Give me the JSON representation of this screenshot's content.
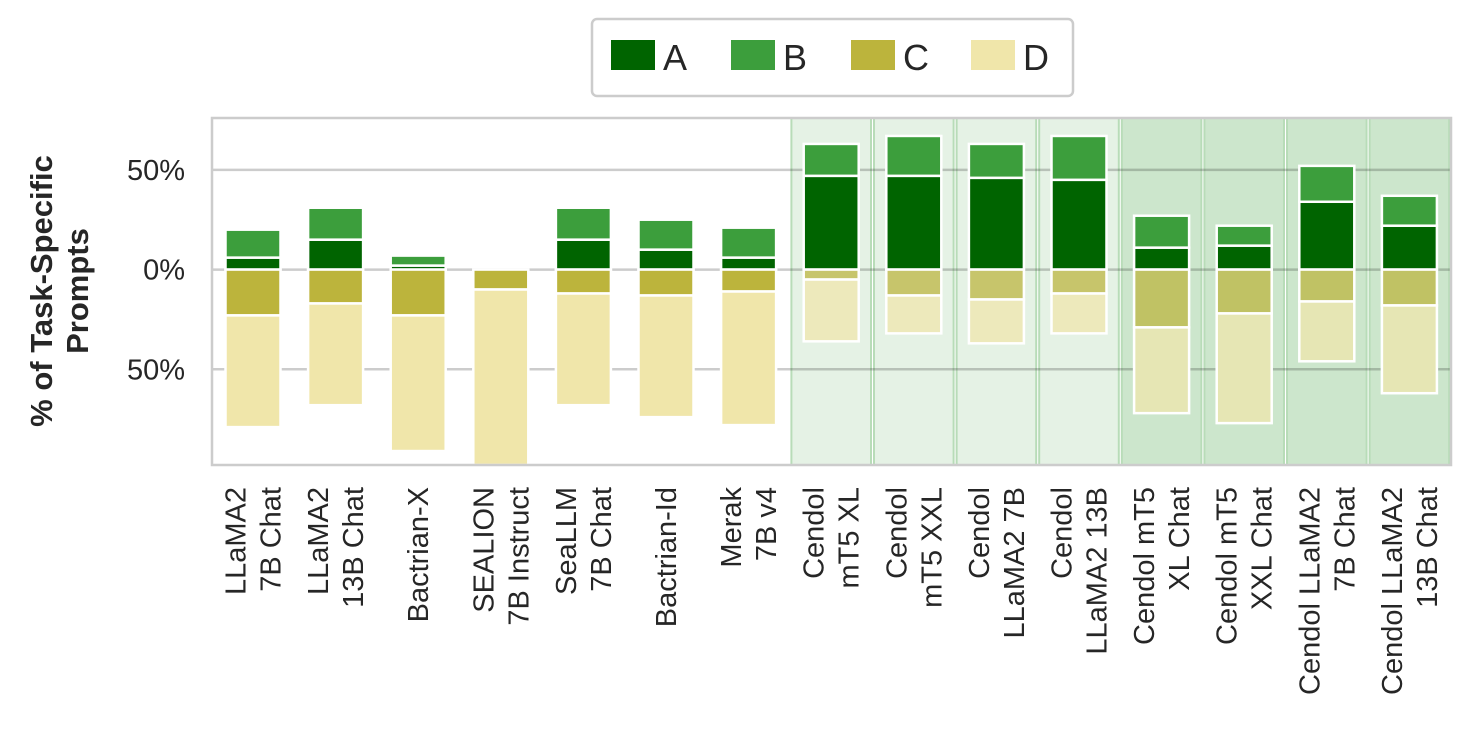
{
  "chart_data": {
    "type": "bar",
    "stacked": "diverging",
    "ylabel": "% of Task-Specific\nPrompts",
    "ylim": [
      -98,
      76
    ],
    "yticks": [
      {
        "value": 50,
        "label": "50%"
      },
      {
        "value": 0,
        "label": "0%"
      },
      {
        "value": -50,
        "label": "50%"
      }
    ],
    "grid": true,
    "legend_position": "top-center",
    "legend": [
      {
        "name": "A",
        "color": "#006400"
      },
      {
        "name": "B",
        "color": "#3c9e3c"
      },
      {
        "name": "C",
        "color": "#bcb43c"
      },
      {
        "name": "D",
        "color": "#f0e6aa"
      }
    ],
    "categories": [
      {
        "label": "LLaMA2\n7B Chat",
        "group": "none"
      },
      {
        "label": "LLaMA2\n13B Chat",
        "group": "none"
      },
      {
        "label": "Bactrian-X",
        "group": "none"
      },
      {
        "label": "SEALION\n7B Instruct",
        "group": "none"
      },
      {
        "label": "SeaLLM\n7B Chat",
        "group": "none"
      },
      {
        "label": "Bactrian-Id",
        "group": "none"
      },
      {
        "label": "Merak\n7B v4",
        "group": "none"
      },
      {
        "label": "Cendol\nmT5 XL",
        "group": "light"
      },
      {
        "label": "Cendol\nmT5 XXL",
        "group": "light"
      },
      {
        "label": "Cendol\nLLaMA2 7B",
        "group": "light"
      },
      {
        "label": "Cendol\nLLaMA2 13B",
        "group": "light"
      },
      {
        "label": "Cendol mT5\nXL Chat",
        "group": "dark"
      },
      {
        "label": "Cendol mT5\nXXL Chat",
        "group": "dark"
      },
      {
        "label": "Cendol LLaMA2\n7B Chat",
        "group": "dark"
      },
      {
        "label": "Cendol LLaMA2\n13B Chat",
        "group": "dark"
      }
    ],
    "series": [
      {
        "name": "A",
        "direction": "positive",
        "values": [
          6,
          15,
          2,
          0,
          15,
          10,
          6,
          47,
          47,
          46,
          45,
          11,
          12,
          34,
          22
        ]
      },
      {
        "name": "B",
        "direction": "positive",
        "values": [
          14,
          16,
          5,
          0,
          16,
          15,
          15,
          16,
          20,
          17,
          22,
          16,
          10,
          18,
          15
        ]
      },
      {
        "name": "C",
        "direction": "negative",
        "values": [
          23,
          17,
          23,
          10,
          12,
          13,
          11,
          5,
          13,
          15,
          12,
          29,
          22,
          16,
          18
        ]
      },
      {
        "name": "D",
        "direction": "negative",
        "values": [
          56,
          51,
          68,
          88,
          56,
          61,
          67,
          31,
          19,
          22,
          20,
          43,
          55,
          30,
          44
        ]
      }
    ]
  }
}
